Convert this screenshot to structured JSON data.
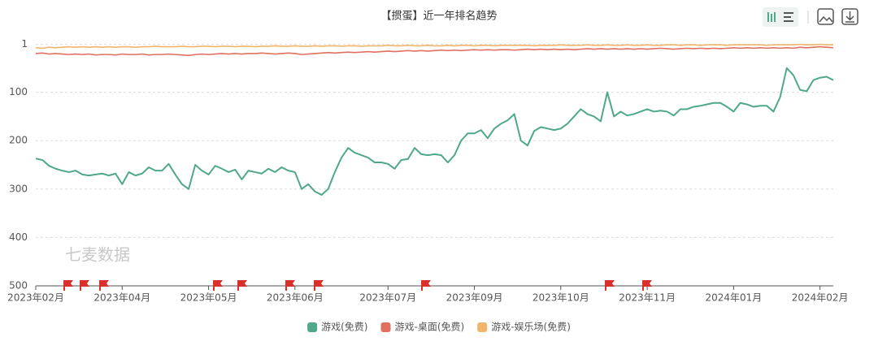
{
  "chart_data": {
    "type": "line",
    "title": "【掼蛋】近一年排名趋势",
    "watermark": "七麦数据",
    "y_inverted": true,
    "ylim": [
      1,
      500
    ],
    "yticks": [
      1,
      100,
      200,
      300,
      400,
      500
    ],
    "grid": true,
    "legend": "bottom",
    "categories": [
      "2023年02月",
      null,
      null,
      null,
      null,
      null,
      null,
      null,
      null,
      null,
      null,
      null,
      null,
      "2023年04月",
      null,
      null,
      null,
      null,
      null,
      null,
      null,
      null,
      null,
      null,
      null,
      null,
      "2023年05月",
      null,
      null,
      null,
      null,
      null,
      null,
      null,
      null,
      null,
      null,
      null,
      null,
      "2023年06月",
      null,
      null,
      null,
      null,
      null,
      null,
      null,
      null,
      null,
      null,
      null,
      null,
      null,
      "2023年07月",
      null,
      null,
      null,
      null,
      null,
      null,
      null,
      null,
      null,
      null,
      null,
      null,
      "2023年09月",
      null,
      null,
      null,
      null,
      null,
      null,
      null,
      null,
      null,
      null,
      null,
      null,
      "2023年10月",
      null,
      null,
      null,
      null,
      null,
      null,
      null,
      null,
      null,
      null,
      null,
      null,
      "2023年11月",
      null,
      null,
      null,
      null,
      null,
      null,
      null,
      null,
      null,
      null,
      null,
      null,
      "2024年01月",
      null,
      null,
      null,
      null,
      null,
      null,
      null,
      null,
      null,
      null,
      null,
      null,
      "2024年02月",
      null,
      null
    ],
    "series": [
      {
        "name": "游戏(免费)",
        "color": "#4fa88a",
        "values": [
          237,
          240,
          252,
          258,
          262,
          265,
          262,
          270,
          272,
          270,
          268,
          272,
          268,
          290,
          265,
          272,
          268,
          255,
          262,
          262,
          248,
          270,
          290,
          300,
          250,
          262,
          270,
          252,
          258,
          265,
          260,
          280,
          262,
          265,
          268,
          258,
          265,
          255,
          262,
          265,
          300,
          290,
          305,
          312,
          300,
          265,
          235,
          215,
          225,
          230,
          235,
          245,
          245,
          248,
          258,
          240,
          238,
          215,
          228,
          230,
          228,
          230,
          245,
          230,
          200,
          185,
          185,
          178,
          195,
          175,
          165,
          158,
          145,
          200,
          210,
          180,
          172,
          175,
          178,
          175,
          165,
          150,
          135,
          145,
          150,
          160,
          100,
          150,
          140,
          148,
          145,
          140,
          135,
          140,
          138,
          140,
          148,
          135,
          135,
          130,
          128,
          125,
          122,
          122,
          130,
          140,
          122,
          125,
          130,
          128,
          128,
          140,
          110,
          50,
          65,
          95,
          98,
          75,
          70,
          68,
          75
        ]
      },
      {
        "name": "游戏-桌面(免费)",
        "color": "#e07060",
        "values": [
          20,
          19,
          21,
          20,
          21,
          22,
          21,
          22,
          21,
          23,
          22,
          22,
          23,
          21,
          22,
          22,
          21,
          23,
          22,
          22,
          21,
          22,
          23,
          24,
          22,
          21,
          22,
          21,
          20,
          21,
          20,
          21,
          20,
          20,
          19,
          20,
          21,
          20,
          19,
          20,
          22,
          21,
          20,
          19,
          18,
          19,
          18,
          17,
          18,
          17,
          16,
          17,
          16,
          15,
          16,
          15,
          14,
          15,
          14,
          15,
          14,
          13,
          14,
          13,
          14,
          13,
          12,
          13,
          12,
          13,
          12,
          12,
          13,
          12,
          11,
          12,
          11,
          12,
          11,
          12,
          11,
          12,
          11,
          10,
          11,
          10,
          11,
          10,
          11,
          10,
          11,
          10,
          11,
          10,
          9,
          10,
          11,
          10,
          9,
          10,
          9,
          10,
          9,
          10,
          9,
          8,
          9,
          8,
          9,
          8,
          9,
          8,
          9,
          8,
          9,
          7,
          8,
          7,
          6,
          7,
          8
        ]
      },
      {
        "name": "游戏-娱乐场(免费)",
        "color": "#f0b46a",
        "values": [
          8,
          9,
          7,
          8,
          7,
          6,
          7,
          6,
          7,
          6,
          7,
          6,
          7,
          6,
          6,
          7,
          6,
          6,
          5,
          6,
          6,
          6,
          5,
          6,
          6,
          5,
          5,
          6,
          5,
          5,
          6,
          5,
          5,
          6,
          5,
          5,
          4,
          5,
          5,
          4,
          5,
          5,
          4,
          5,
          4,
          4,
          5,
          4,
          4,
          5,
          4,
          4,
          4,
          3,
          4,
          4,
          3,
          4,
          4,
          3,
          4,
          4,
          3,
          4,
          3,
          3,
          4,
          3,
          3,
          4,
          3,
          3,
          3,
          3,
          3,
          4,
          3,
          3,
          3,
          2,
          3,
          3,
          3,
          2,
          3,
          3,
          2,
          3,
          3,
          2,
          3,
          3,
          2,
          3,
          3,
          2,
          2,
          3,
          2,
          2,
          3,
          2,
          2,
          2,
          3,
          2,
          2,
          2,
          2,
          2,
          3,
          2,
          2,
          2,
          2,
          1,
          2,
          2,
          1,
          2,
          2
        ]
      }
    ]
  }
}
